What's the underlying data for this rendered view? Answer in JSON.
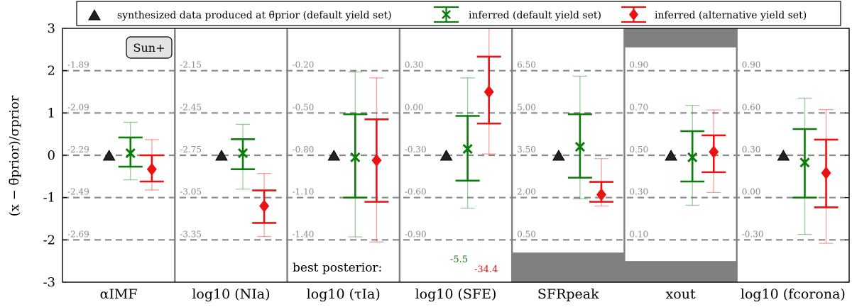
{
  "chart_data": {
    "type": "scatter",
    "ylabel": "(x − θ̄prior)/σprior",
    "ylim": [
      -3,
      3
    ],
    "yticks": [
      3,
      2,
      1,
      0,
      -1,
      -2,
      -3
    ],
    "grid": "dashed horizontal lines at y = -2, -1, 0, 1, 2",
    "legend": {
      "placement": "top, outside plot",
      "entries": [
        {
          "label": "synthesized data produced at θ̄prior (default yield set)",
          "marker": "triangle",
          "color": "#222222"
        },
        {
          "label": "inferred (default yield set)",
          "marker": "x",
          "color": "#0a7d0a"
        },
        {
          "label": "inferred (alternative yield set)",
          "marker": "diamond",
          "color": "#ee1111"
        }
      ]
    },
    "colors": {
      "synthesized": "#222222",
      "default": "#0a7d0a",
      "alternative": "#ee1111",
      "shade": "#808080",
      "grid": "#8a8a8a"
    },
    "panels": [
      {
        "xlabel": "αIMF",
        "ticklabels": [
          "-1.89",
          "-2.09",
          "-2.29",
          "-2.49",
          "-2.69"
        ],
        "synth": 0,
        "default": {
          "value": 0.05,
          "inner": [
            -0.27,
            0.42
          ],
          "outer": [
            -0.58,
            0.78
          ]
        },
        "alternative": {
          "value": -0.33,
          "inner": [
            -0.62,
            0.0
          ],
          "outer": [
            -0.82,
            0.37
          ]
        }
      },
      {
        "xlabel": "log10 (NIa)",
        "ticklabels": [
          "-2.15",
          "-2.45",
          "-2.75",
          "-3.05",
          "-3.35"
        ],
        "synth": 0,
        "default": {
          "value": 0.05,
          "inner": [
            -0.33,
            0.38
          ],
          "outer": [
            -0.8,
            0.73
          ]
        },
        "alternative": {
          "value": -1.2,
          "inner": [
            -1.6,
            -0.83
          ],
          "outer": [
            -1.92,
            -0.43
          ]
        }
      },
      {
        "xlabel": "log10 (τIa)",
        "ticklabels": [
          "-0.20",
          "-0.50",
          "-0.80",
          "-1.10",
          "-1.40"
        ],
        "synth": 0,
        "default": {
          "value": -0.05,
          "inner": [
            -1.0,
            0.97
          ],
          "outer": [
            -1.93,
            1.97
          ]
        },
        "alternative": {
          "value": -0.12,
          "inner": [
            -1.1,
            0.85
          ],
          "outer": [
            -2.05,
            1.83
          ]
        }
      },
      {
        "xlabel": "log10 (SFE)",
        "ticklabels": [
          "0.30",
          "0.00",
          "-0.30",
          "-0.60",
          "-0.90"
        ],
        "synth": 0,
        "default": {
          "value": 0.15,
          "inner": [
            -0.6,
            0.93
          ],
          "outer": [
            -1.25,
            1.83
          ]
        },
        "alternative": {
          "value": 1.5,
          "inner": [
            0.75,
            2.33
          ],
          "outer": [
            0.03,
            3.0
          ]
        }
      },
      {
        "xlabel": "SFRpeak",
        "ticklabels": [
          "6.50",
          "5.00",
          "3.50",
          "2.00",
          "0.50"
        ],
        "synth": 0,
        "default": {
          "value": 0.2,
          "inner": [
            -0.53,
            0.97
          ],
          "outer": [
            -1.03,
            1.87
          ]
        },
        "alternative": {
          "value": -0.93,
          "inner": [
            -1.1,
            -0.63
          ],
          "outer": [
            -1.2,
            -0.08
          ]
        },
        "shade_low": -2.3
      },
      {
        "xlabel": "xout",
        "ticklabels": [
          "0.90",
          "0.70",
          "0.50",
          "0.30",
          "0.10"
        ],
        "synth": 0,
        "default": {
          "value": -0.05,
          "inner": [
            -0.62,
            0.57
          ],
          "outer": [
            -1.18,
            1.18
          ]
        },
        "alternative": {
          "value": 0.08,
          "inner": [
            -0.4,
            0.47
          ],
          "outer": [
            -0.88,
            1.07
          ]
        },
        "shade_high": 2.55,
        "shade_low": -2.5
      },
      {
        "xlabel": "log10 (fcorona)",
        "ticklabels": [
          "0.90",
          "0.60",
          "0.30",
          "0.00",
          "-0.30"
        ],
        "synth": 0,
        "default": {
          "value": -0.17,
          "inner": [
            -1.0,
            0.62
          ],
          "outer": [
            -1.87,
            1.35
          ]
        },
        "alternative": {
          "value": -0.42,
          "inner": [
            -1.23,
            0.37
          ],
          "outer": [
            -2.08,
            1.08
          ]
        }
      }
    ],
    "annotations": {
      "sun_label": "Sun+",
      "best_posterior_label": "best posterior:",
      "best_posterior_default": "-5.5",
      "best_posterior_alternative": "-34.4"
    }
  }
}
